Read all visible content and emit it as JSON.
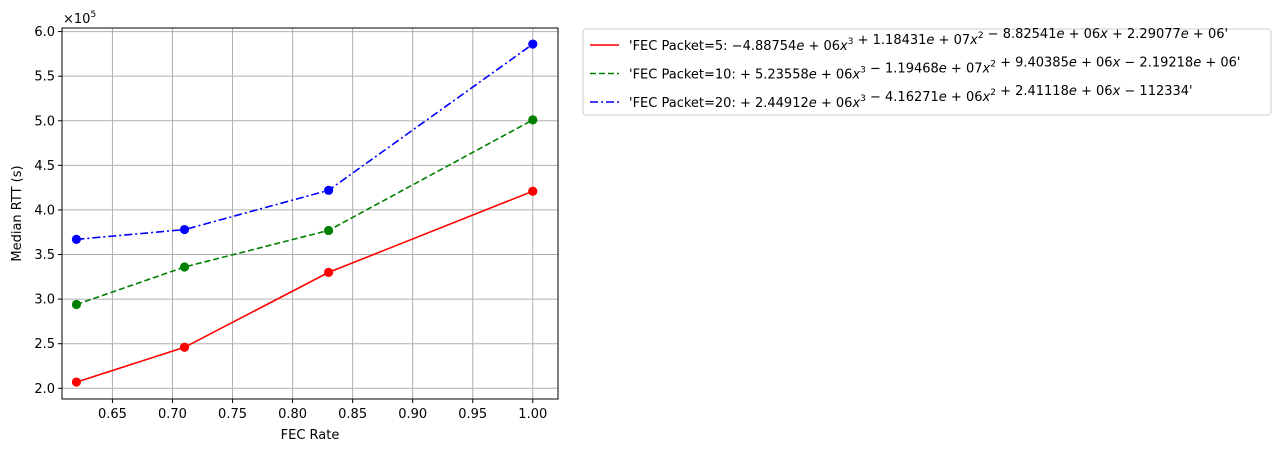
{
  "chart_data": {
    "type": "line",
    "xlabel": "FEC Rate",
    "ylabel": "Median RTT (s)",
    "y_multiplier_label": "×10",
    "y_multiplier_exp": "5",
    "xlim": [
      0.608,
      1.021
    ],
    "ylim": [
      1.88,
      6.04
    ],
    "y_scale": 100000,
    "xticks": [
      0.65,
      0.7,
      0.75,
      0.8,
      0.85,
      0.9,
      0.95,
      1.0
    ],
    "xtick_labels": [
      "0.65",
      "0.70",
      "0.75",
      "0.80",
      "0.85",
      "0.90",
      "0.95",
      "1.00"
    ],
    "yticks": [
      2.0,
      2.5,
      3.0,
      3.5,
      4.0,
      4.5,
      5.0,
      5.5,
      6.0
    ],
    "ytick_labels": [
      "2.0",
      "2.5",
      "3.0",
      "3.5",
      "4.0",
      "4.5",
      "5.0",
      "5.5",
      "6.0"
    ],
    "grid": true,
    "legend_position": "outside-right-top",
    "x": [
      0.62,
      0.71,
      0.83,
      1.0
    ],
    "series": [
      {
        "name": "'FEC Packet=5: −4.88754e+06x³+1.18431e+07x²−8.82541e+06x+2.29077e+06'",
        "legend_parts": [
          "'FEC Packet=5: −4.88754",
          "e",
          " + 06",
          "x",
          "³",
          " + 1.18431",
          "e",
          " + 07",
          "x",
          "²",
          " − 8.82541",
          "e",
          " + 06",
          "x",
          " + 2.29077",
          "e",
          " + 06'"
        ],
        "values": [
          2.07,
          2.46,
          3.3,
          4.21
        ],
        "color": "#ff0000",
        "dash": "solid"
      },
      {
        "name": "'FEC Packet=10: +5.23558e+06x³−1.19468e+07x²+9.40385e+06x−2.19218e+06'",
        "legend_parts": [
          "'FEC Packet=10: + 5.23558",
          "e",
          " + 06",
          "x",
          "³",
          " − 1.19468",
          "e",
          " + 07",
          "x",
          "²",
          " + 9.40385",
          "e",
          " + 06",
          "x",
          " − 2.19218",
          "e",
          " + 06'"
        ],
        "values": [
          2.94,
          3.36,
          3.77,
          5.01
        ],
        "color": "#008000",
        "dash": "dashed"
      },
      {
        "name": "'FEC Packet=20: +2.44912e+06x³−4.16271e+06x²+2.41118e+06x−112334'",
        "legend_parts": [
          "'FEC Packet=20: + 2.44912",
          "e",
          " + 06",
          "x",
          "³",
          " − 4.16271",
          "e",
          " + 06",
          "x",
          "²",
          " + 2.41118",
          "e",
          " + 06",
          "x",
          " − 112334'"
        ],
        "values": [
          3.67,
          3.78,
          4.22,
          5.86
        ],
        "color": "#0000ff",
        "dash": "dashdot"
      }
    ]
  }
}
